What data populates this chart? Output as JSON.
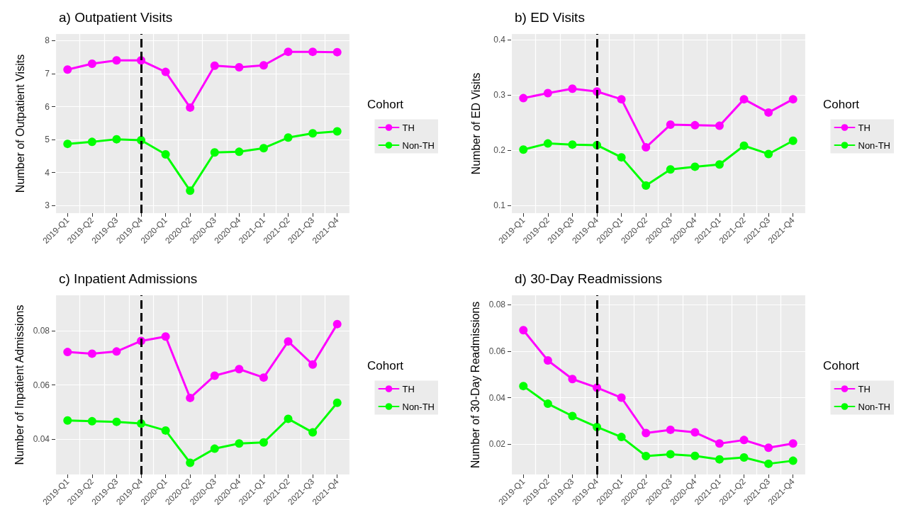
{
  "chart_data": [
    {
      "type": "line",
      "title": "a) Outpatient Visits",
      "ylabel": "Number of Outpatient Visits",
      "legend_title": "Cohort",
      "legend": "right",
      "grid": true,
      "marker": "circle",
      "categories": [
        "2019-Q1",
        "2019-Q2",
        "2019-Q3",
        "2019-Q4",
        "2020-Q1",
        "2020-Q2",
        "2020-Q3",
        "2020-Q4",
        "2021-Q1",
        "2021-Q2",
        "2021-Q3",
        "2021-Q4"
      ],
      "ylim": [
        2.77,
        8.2
      ],
      "yticks": [
        3,
        4,
        5,
        6,
        7,
        8
      ],
      "series": [
        {
          "name": "TH",
          "color": "#ff00ff",
          "values": [
            7.12,
            7.3,
            7.4,
            7.4,
            7.05,
            5.97,
            7.24,
            7.19,
            7.25,
            7.66,
            7.66,
            7.65
          ]
        },
        {
          "name": "Non-TH",
          "color": "#00ff00",
          "values": [
            4.87,
            4.93,
            5.01,
            4.98,
            4.55,
            3.45,
            4.61,
            4.63,
            4.74,
            5.06,
            5.19,
            5.25
          ]
        }
      ],
      "ref_lines": [
        {
          "axis": "x",
          "value": "2019-Q4",
          "color": "#000000",
          "line_style": "dashed"
        }
      ]
    },
    {
      "type": "line",
      "title": "b) ED Visits",
      "ylabel": "Number of ED Visits",
      "legend_title": "Cohort",
      "legend": "right",
      "grid": true,
      "marker": "circle",
      "categories": [
        "2019-Q1",
        "2019-Q2",
        "2019-Q3",
        "2019-Q4",
        "2020-Q1",
        "2020-Q2",
        "2020-Q3",
        "2020-Q4",
        "2021-Q1",
        "2021-Q2",
        "2021-Q3",
        "2021-Q4"
      ],
      "ylim": [
        0.086,
        0.41
      ],
      "yticks": [
        0.1,
        0.2,
        0.3,
        0.4
      ],
      "series": [
        {
          "name": "TH",
          "color": "#ff00ff",
          "values": [
            0.294,
            0.303,
            0.311,
            0.306,
            0.292,
            0.205,
            0.246,
            0.245,
            0.244,
            0.292,
            0.268,
            0.292
          ]
        },
        {
          "name": "Non-TH",
          "color": "#00ff00",
          "values": [
            0.201,
            0.212,
            0.21,
            0.209,
            0.187,
            0.136,
            0.165,
            0.17,
            0.174,
            0.208,
            0.193,
            0.217
          ]
        }
      ],
      "ref_lines": [
        {
          "axis": "x",
          "value": "2019-Q4",
          "color": "#000000",
          "line_style": "dashed"
        }
      ]
    },
    {
      "type": "line",
      "title": "c) Inpatient Admissions",
      "ylabel": "Number of Inpatient Admissions",
      "legend_title": "Cohort",
      "legend": "right",
      "grid": true,
      "marker": "circle",
      "categories": [
        "2019-Q1",
        "2019-Q2",
        "2019-Q3",
        "2019-Q4",
        "2020-Q1",
        "2020-Q2",
        "2020-Q3",
        "2020-Q4",
        "2021-Q1",
        "2021-Q2",
        "2021-Q3",
        "2021-Q4"
      ],
      "ylim": [
        0.027,
        0.093
      ],
      "yticks": [
        0.04,
        0.06,
        0.08
      ],
      "series": [
        {
          "name": "TH",
          "color": "#ff00ff",
          "values": [
            0.0721,
            0.0715,
            0.0723,
            0.0762,
            0.0778,
            0.0552,
            0.0634,
            0.0658,
            0.0627,
            0.076,
            0.0675,
            0.0824
          ]
        },
        {
          "name": "Non-TH",
          "color": "#00ff00",
          "values": [
            0.0469,
            0.0466,
            0.0464,
            0.0458,
            0.0432,
            0.0313,
            0.0365,
            0.0384,
            0.0388,
            0.0475,
            0.0425,
            0.0534
          ]
        }
      ],
      "ref_lines": [
        {
          "axis": "x",
          "value": "2019-Q4",
          "color": "#000000",
          "line_style": "dashed"
        }
      ]
    },
    {
      "type": "line",
      "title": "d) 30-Day Readmissions",
      "ylabel": "Number of 30-Day Readmissions",
      "legend_title": "Cohort",
      "legend": "right",
      "grid": true,
      "marker": "circle",
      "categories": [
        "2019-Q1",
        "2019-Q2",
        "2019-Q3",
        "2019-Q4",
        "2020-Q1",
        "2020-Q2",
        "2020-Q3",
        "2020-Q4",
        "2021-Q1",
        "2021-Q2",
        "2021-Q3",
        "2021-Q4"
      ],
      "ylim": [
        0.007,
        0.084
      ],
      "yticks": [
        0.02,
        0.04,
        0.06,
        0.08
      ],
      "series": [
        {
          "name": "TH",
          "color": "#ff00ff",
          "values": [
            0.069,
            0.056,
            0.048,
            0.0443,
            0.04,
            0.0248,
            0.0262,
            0.0251,
            0.0203,
            0.0218,
            0.0185,
            0.0203
          ]
        },
        {
          "name": "Non-TH",
          "color": "#00ff00",
          "values": [
            0.045,
            0.0374,
            0.0321,
            0.0274,
            0.0231,
            0.0149,
            0.0157,
            0.015,
            0.0135,
            0.0143,
            0.0116,
            0.0129
          ]
        }
      ],
      "ref_lines": [
        {
          "axis": "x",
          "value": "2019-Q4",
          "color": "#000000",
          "line_style": "dashed"
        }
      ]
    }
  ]
}
